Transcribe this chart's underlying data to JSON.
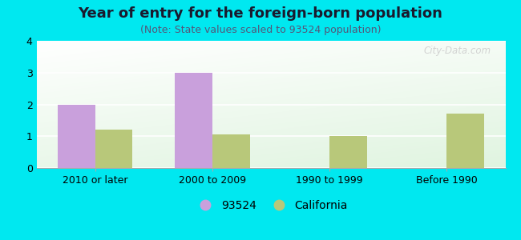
{
  "title": "Year of entry for the foreign-born population",
  "subtitle": "(Note: State values scaled to 93524 population)",
  "categories": [
    "2010 or later",
    "2000 to 2009",
    "1990 to 1999",
    "Before 1990"
  ],
  "series_93524": [
    2.0,
    3.0,
    0.0,
    0.0
  ],
  "series_california": [
    1.2,
    1.05,
    1.0,
    1.72
  ],
  "color_93524": "#c9a0dc",
  "color_california": "#b8c87a",
  "background_outer": "#00e8f0",
  "ylim": [
    0,
    4
  ],
  "yticks": [
    0,
    1,
    2,
    3,
    4
  ],
  "bar_width": 0.32,
  "legend_93524": "93524",
  "legend_california": "California",
  "title_fontsize": 13,
  "subtitle_fontsize": 9,
  "tick_fontsize": 9,
  "legend_fontsize": 10,
  "watermark": "City-Data.com"
}
